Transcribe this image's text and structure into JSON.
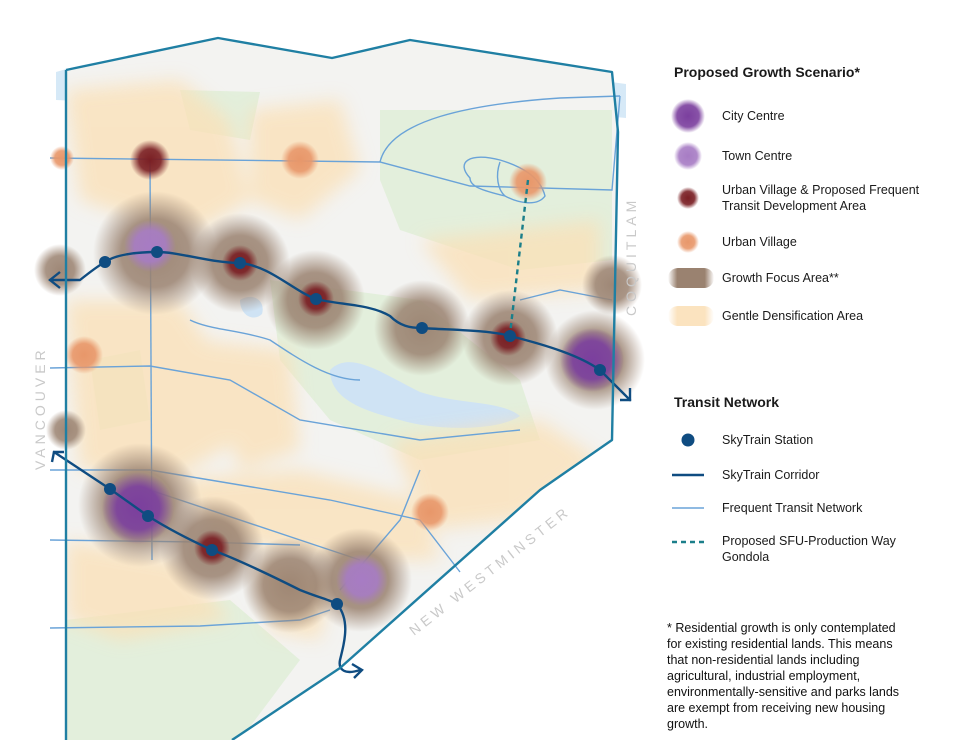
{
  "legend": {
    "growth_title": "Proposed Growth Scenario*",
    "growth_items": [
      {
        "label": "City Centre",
        "color": "#7b3f9e"
      },
      {
        "label": "Town Centre",
        "color": "#a77cc4"
      },
      {
        "label": "Urban Village & Proposed Frequent Transit Development Area",
        "color": "#7a1f24"
      },
      {
        "label": "Urban Village",
        "color": "#e8976a"
      },
      {
        "label": "Growth Focus Area**",
        "color": "#9a8270"
      },
      {
        "label": "Gentle Densification Area",
        "color": "#fbe3bf"
      }
    ],
    "transit_title": "Transit Network",
    "transit_items": [
      {
        "label": "SkyTrain Station",
        "color": "#0f4c81"
      },
      {
        "label": "SkyTrain Corridor",
        "color": "#0f4c81"
      },
      {
        "label": "Frequent Transit Network",
        "color": "#6aa3d8"
      },
      {
        "label": "Proposed SFU-Production Way Gondola",
        "color": "#1b7f8a"
      }
    ]
  },
  "footnote": "* Residential growth is only contemplated for existing residential lands. This means that non-residential lands including agricultural, industrial employment, environmentally-sensitive and parks lands are exempt from receiving new housing growth.",
  "map_labels": {
    "vancouver": "VANCOUVER",
    "coquitlam": "COQUITLAM",
    "new_westminster": "NEW WESTMINSTER"
  },
  "colors": {
    "boundary": "#1f7fa3",
    "water": "#d6e9f7",
    "park": "#e3efdc",
    "skytrain": "#0f4c81",
    "frequent_transit": "#6aa3d8",
    "gondola": "#1b7f8a"
  }
}
